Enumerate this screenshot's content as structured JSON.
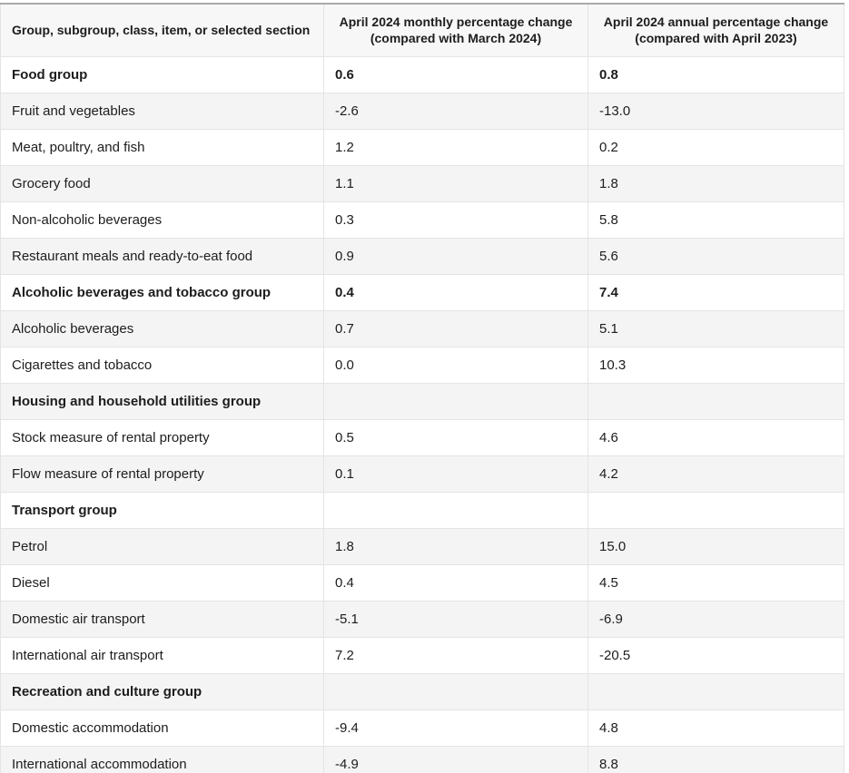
{
  "chart_data": {
    "type": "table",
    "columns": [
      "Group, subgroup, class, item, or selected section",
      "April 2024 monthly percentage change (compared with March 2024)",
      "April 2024 annual percentage change (compared with April 2023)"
    ],
    "rows": [
      {
        "label": "Food group",
        "monthly": "0.6",
        "annual": "0.8",
        "bold": true
      },
      {
        "label": "Fruit and vegetables",
        "monthly": "-2.6",
        "annual": "-13.0",
        "bold": false
      },
      {
        "label": "Meat, poultry, and fish",
        "monthly": "1.2",
        "annual": "0.2",
        "bold": false
      },
      {
        "label": "Grocery food",
        "monthly": "1.1",
        "annual": "1.8",
        "bold": false
      },
      {
        "label": "Non-alcoholic beverages",
        "monthly": "0.3",
        "annual": "5.8",
        "bold": false
      },
      {
        "label": "Restaurant meals and ready-to-eat food",
        "monthly": "0.9",
        "annual": "5.6",
        "bold": false
      },
      {
        "label": "Alcoholic beverages and tobacco group",
        "monthly": "0.4",
        "annual": "7.4",
        "bold": true
      },
      {
        "label": "Alcoholic beverages",
        "monthly": "0.7",
        "annual": "5.1",
        "bold": false
      },
      {
        "label": "Cigarettes and tobacco",
        "monthly": "0.0",
        "annual": "10.3",
        "bold": false
      },
      {
        "label": "Housing and household utilities group",
        "monthly": "",
        "annual": "",
        "bold": true
      },
      {
        "label": "Stock measure of rental property",
        "monthly": "0.5",
        "annual": "4.6",
        "bold": false
      },
      {
        "label": "Flow measure of rental property",
        "monthly": "0.1",
        "annual": "4.2",
        "bold": false
      },
      {
        "label": "Transport group",
        "monthly": "",
        "annual": "",
        "bold": true
      },
      {
        "label": "Petrol",
        "monthly": "1.8",
        "annual": "15.0",
        "bold": false
      },
      {
        "label": "Diesel",
        "monthly": "0.4",
        "annual": "4.5",
        "bold": false
      },
      {
        "label": "Domestic air transport",
        "monthly": "-5.1",
        "annual": "-6.9",
        "bold": false
      },
      {
        "label": "International air transport",
        "monthly": "7.2",
        "annual": "-20.5",
        "bold": false
      },
      {
        "label": "Recreation and culture group",
        "monthly": "",
        "annual": "",
        "bold": true
      },
      {
        "label": "Domestic accommodation",
        "monthly": "-9.4",
        "annual": "4.8",
        "bold": false
      },
      {
        "label": "International accommodation",
        "monthly": "-4.9",
        "annual": "8.8",
        "bold": false
      }
    ],
    "layout": {
      "zebra_striping": true,
      "first_data_row_background": "white",
      "header_alignment": [
        "left",
        "center",
        "center"
      ],
      "value_alignment": "left"
    }
  },
  "colors": {
    "text": "#1d1d1d",
    "header_background": "#f7f7f7",
    "alternate_row_background": "#f4f4f4",
    "cell_border": "#e4e4e4",
    "outer_border": "#a9a9a9"
  }
}
